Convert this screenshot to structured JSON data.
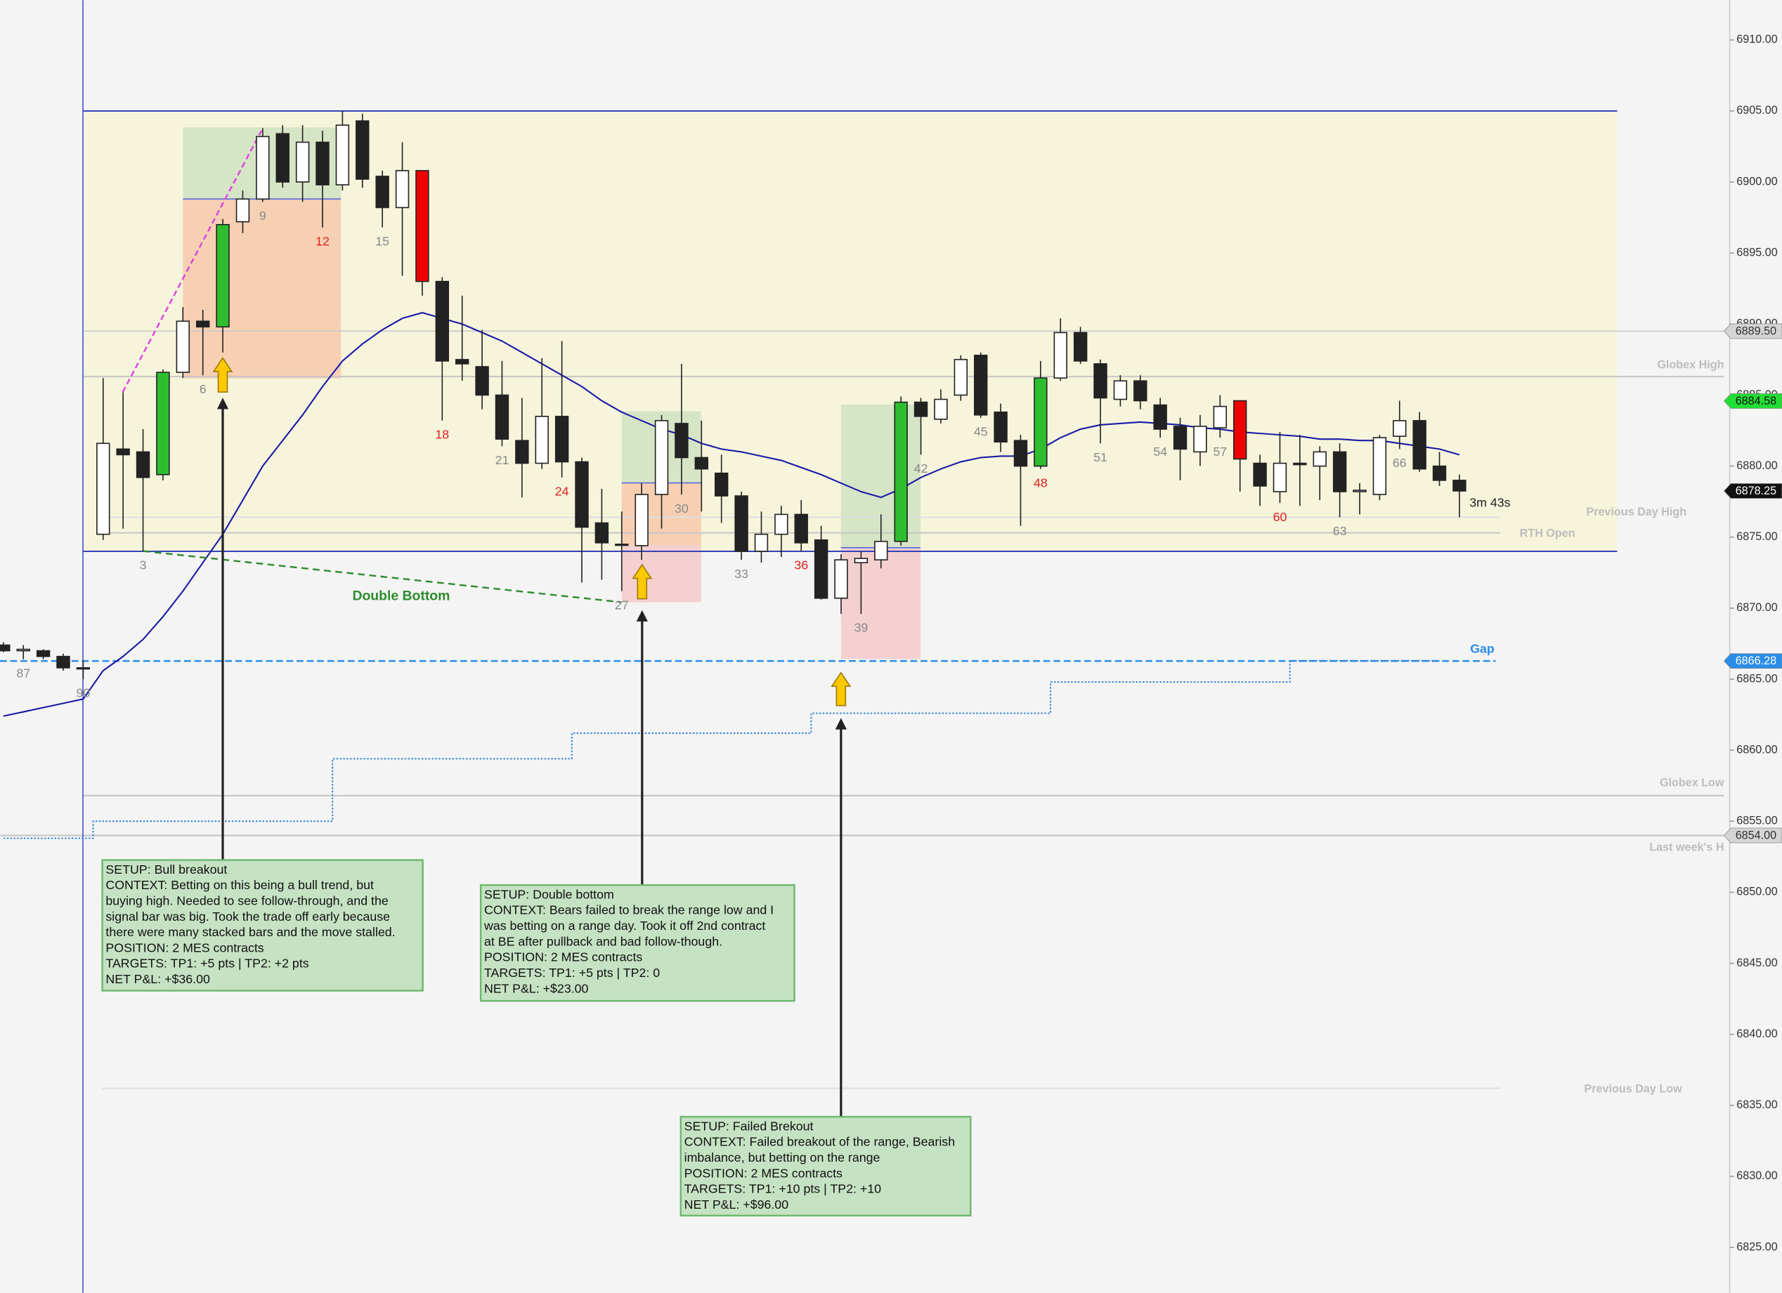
{
  "chart_data": {
    "type": "candlestick",
    "categories": [
      null,
      "87",
      null,
      null,
      "90",
      null,
      null,
      "3",
      null,
      null,
      "6",
      null,
      null,
      "9",
      null,
      null,
      "12",
      null,
      null,
      "15",
      null,
      null,
      "18",
      null,
      null,
      "21",
      null,
      null,
      "24",
      null,
      null,
      "27",
      null,
      null,
      "30",
      null,
      null,
      "33",
      null,
      null,
      "36",
      null,
      null,
      "39",
      null,
      null,
      "42",
      null,
      null,
      "45",
      null,
      null,
      "48",
      null,
      null,
      "51",
      null,
      null,
      "54",
      null,
      null,
      "57",
      null,
      null,
      "60",
      null,
      null,
      "63",
      null,
      null,
      "66",
      null,
      null,
      null
    ],
    "category_colors": [
      null,
      "#888888",
      null,
      null,
      "#888888",
      null,
      null,
      "#888888",
      null,
      null,
      "#888888",
      null,
      null,
      "#888888",
      null,
      null,
      "#e0201f",
      null,
      null,
      "#888888",
      null,
      null,
      "#e0201f",
      null,
      null,
      "#888888",
      null,
      null,
      "#e0201f",
      null,
      null,
      "#888888",
      null,
      null,
      "#888888",
      null,
      null,
      "#888888",
      null,
      null,
      "#e0201f",
      null,
      null,
      "#888888",
      null,
      null,
      "#888888",
      null,
      null,
      "#888888",
      null,
      null,
      "#e0201f",
      null,
      null,
      "#888888",
      null,
      null,
      "#888888",
      null,
      null,
      "#888888",
      null,
      null,
      "#e0201f",
      null,
      null,
      "#888888",
      null,
      null,
      "#888888",
      null,
      null,
      null
    ],
    "open": [
      6867.4,
      6867.0,
      6867.0,
      6866.6,
      6865.8,
      6875.2,
      6881.2,
      6881.0,
      6879.4,
      6886.6,
      6890.2,
      6889.8,
      6897.2,
      6898.8,
      6903.4,
      6900.0,
      6902.8,
      6899.8,
      6904.3,
      6900.4,
      6898.2,
      6900.8,
      6893.0,
      6887.5,
      6887.0,
      6885.0,
      6881.8,
      6880.2,
      6883.5,
      6880.3,
      6876.0,
      6874.5,
      6874.4,
      6878.0,
      6883.0,
      6880.6,
      6879.5,
      6877.9,
      6874.0,
      6875.2,
      6876.6,
      6874.8,
      6870.7,
      6873.2,
      6873.4,
      6874.7,
      6884.5,
      6883.3,
      6885.0,
      6887.8,
      6883.8,
      6881.8,
      6880.0,
      6886.2,
      6889.4,
      6887.2,
      6884.7,
      6886.0,
      6884.3,
      6882.8,
      6881.0,
      6882.7,
      6884.6,
      6880.2,
      6878.2,
      6880.2,
      6880.0,
      6881.0,
      6878.2,
      6878.0,
      6882.1,
      6883.2,
      6880.0,
      6879.0
    ],
    "high": [
      6867.6,
      6867.4,
      6867.1,
      6866.8,
      6866.3,
      6886.2,
      6885.2,
      6882.6,
      6886.8,
      6891.2,
      6891.0,
      6897.4,
      6899.4,
      6903.8,
      6904.0,
      6904.0,
      6903.6,
      6905.0,
      6904.8,
      6900.8,
      6902.8,
      6900.8,
      6893.3,
      6892.0,
      6889.6,
      6887.4,
      6884.8,
      6887.6,
      6888.8,
      6880.6,
      6878.4,
      6876.8,
      6878.8,
      6883.6,
      6887.2,
      6883.2,
      6880.8,
      6878.2,
      6876.8,
      6877.2,
      6877.6,
      6875.8,
      6873.8,
      6874.0,
      6876.6,
      6884.9,
      6884.8,
      6885.4,
      6887.8,
      6888.0,
      6884.4,
      6882.2,
      6887.4,
      6890.4,
      6889.8,
      6887.5,
      6886.4,
      6886.4,
      6884.8,
      6883.4,
      6883.6,
      6885.0,
      6884.6,
      6880.8,
      6882.4,
      6882.2,
      6881.4,
      6881.6,
      6878.8,
      6882.2,
      6884.6,
      6883.8,
      6881.0,
      6879.4
    ],
    "low": [
      6866.9,
      6866.4,
      6866.4,
      6865.6,
      6865.0,
      6874.8,
      6875.6,
      6874.0,
      6879.0,
      6886.2,
      6886.4,
      6888.0,
      6896.4,
      6898.6,
      6899.6,
      6898.6,
      6896.8,
      6899.4,
      6899.6,
      6896.8,
      6893.4,
      6892.0,
      6883.2,
      6886.0,
      6884.0,
      6881.4,
      6877.8,
      6879.8,
      6879.2,
      6871.8,
      6872.0,
      6871.2,
      6873.4,
      6875.6,
      6878.0,
      6876.8,
      6876.0,
      6873.4,
      6873.2,
      6873.6,
      6874.0,
      6870.6,
      6869.6,
      6869.6,
      6872.8,
      6874.4,
      6880.8,
      6883.0,
      6884.6,
      6883.4,
      6881.0,
      6875.8,
      6879.8,
      6886.0,
      6887.2,
      6881.6,
      6884.2,
      6884.0,
      6882.0,
      6879.0,
      6880.0,
      6882.0,
      6878.2,
      6877.2,
      6877.4,
      6877.2,
      6877.6,
      6876.4,
      6876.6,
      6877.6,
      6881.2,
      6879.6,
      6878.6,
      6876.4
    ],
    "close": [
      6867.0,
      6867.1,
      6866.6,
      6865.8,
      6865.8,
      6881.6,
      6880.8,
      6879.2,
      6886.6,
      6890.2,
      6889.8,
      6897.0,
      6898.8,
      6903.2,
      6900.0,
      6902.8,
      6899.8,
      6904.0,
      6900.2,
      6898.2,
      6900.8,
      6893.0,
      6887.4,
      6887.2,
      6885.0,
      6881.9,
      6880.2,
      6883.5,
      6880.3,
      6875.7,
      6874.6,
      6874.5,
      6878.0,
      6883.2,
      6880.6,
      6879.8,
      6877.9,
      6874.0,
      6875.2,
      6876.6,
      6874.6,
      6870.7,
      6873.4,
      6873.5,
      6874.7,
      6884.5,
      6883.5,
      6884.7,
      6887.5,
      6883.6,
      6881.7,
      6880.0,
      6886.2,
      6889.4,
      6887.4,
      6884.8,
      6886.0,
      6884.6,
      6882.6,
      6881.2,
      6882.8,
      6884.2,
      6880.5,
      6878.6,
      6880.2,
      6880.1,
      6881.0,
      6878.2,
      6878.3,
      6882.0,
      6883.2,
      6879.8,
      6879.0,
      6878.25
    ],
    "colors": [
      null,
      null,
      null,
      null,
      null,
      null,
      null,
      null,
      "#2ebd2e",
      null,
      null,
      "#2ebd2e",
      null,
      null,
      null,
      null,
      null,
      null,
      null,
      null,
      null,
      "#ee0000",
      null,
      null,
      null,
      null,
      null,
      null,
      null,
      null,
      null,
      null,
      null,
      null,
      null,
      null,
      null,
      null,
      null,
      null,
      null,
      null,
      null,
      null,
      null,
      "#2ebd2e",
      null,
      null,
      null,
      null,
      null,
      null,
      "#2ebd2e",
      null,
      null,
      null,
      null,
      null,
      null,
      null,
      null,
      null,
      "#ee0000",
      null,
      null,
      null,
      null,
      null,
      null,
      null,
      null,
      null,
      null,
      null
    ],
    "up_color": "#ffffff",
    "down_color": "#222222",
    "series": [
      {
        "color": "#1a1aa8",
        "style": "solid",
        "values": [
          6862.4,
          6862.7,
          6863.0,
          6863.3,
          6863.6,
          6865.6,
          6866.6,
          6867.8,
          6869.4,
          6871.2,
          6873.2,
          6875.2,
          6877.6,
          6880.0,
          6881.8,
          6883.6,
          6885.6,
          6887.4,
          6888.6,
          6889.6,
          6890.4,
          6890.8,
          6890.4,
          6890.0,
          6889.4,
          6888.8,
          6888.0,
          6887.2,
          6886.4,
          6885.6,
          6884.6,
          6883.8,
          6883.2,
          6882.6,
          6882.2,
          6881.6,
          6881.2,
          6881.0,
          6880.7,
          6880.4,
          6879.9,
          6879.4,
          6878.8,
          6878.2,
          6877.8,
          6878.4,
          6879.2,
          6879.8,
          6880.3,
          6880.6,
          6880.7,
          6880.7,
          6881.2,
          6882.0,
          6882.6,
          6882.9,
          6883.0,
          6883.1,
          6883.0,
          6882.9,
          6882.7,
          6882.6,
          6882.4,
          6882.3,
          6882.2,
          6882.1,
          6881.9,
          6881.9,
          6881.8,
          6881.8,
          6881.6,
          6881.4,
          6881.2,
          6880.8
        ]
      },
      {
        "color": "#2a7fd8",
        "style": "step-dotted",
        "values": [
          6853.8,
          6853.8,
          6853.8,
          6853.8,
          6853.8,
          6855.0,
          6855.0,
          6855.0,
          6855.0,
          6855.0,
          6855.0,
          6855.0,
          6855.0,
          6855.0,
          6855.0,
          6855.0,
          6855.0,
          6859.4,
          6859.4,
          6859.4,
          6859.4,
          6859.4,
          6859.4,
          6859.4,
          6859.4,
          6859.4,
          6859.4,
          6859.4,
          6859.4,
          6861.2,
          6861.2,
          6861.2,
          6861.2,
          6861.2,
          6861.2,
          6861.2,
          6861.2,
          6861.2,
          6861.2,
          6861.2,
          6861.2,
          6862.6,
          6862.6,
          6862.6,
          6862.6,
          6862.6,
          6862.6,
          6862.6,
          6862.6,
          6862.6,
          6862.6,
          6862.6,
          6862.6,
          6864.8,
          6864.8,
          6864.8,
          6864.8,
          6864.8,
          6864.8,
          6864.8,
          6864.8,
          6864.8,
          6864.8,
          6864.8,
          6864.8,
          6866.3,
          6866.3,
          6866.3,
          6866.3,
          6866.3,
          6866.3,
          6866.3,
          6866.3,
          null
        ]
      }
    ],
    "ylim": [
      6821.8,
      6912.8
    ],
    "yticks": [
      {
        "value": 6825,
        "label": "6825.00"
      },
      {
        "value": 6830,
        "label": "6830.00"
      },
      {
        "value": 6835,
        "label": "6835.00"
      },
      {
        "value": 6840,
        "label": "6840.00"
      },
      {
        "value": 6845,
        "label": "6845.00"
      },
      {
        "value": 6850,
        "label": "6850.00"
      },
      {
        "value": 6855,
        "label": "6855.00"
      },
      {
        "value": 6860,
        "label": "6860.00"
      },
      {
        "value": 6865,
        "label": "6865.00"
      },
      {
        "value": 6870,
        "label": "6870.00"
      },
      {
        "value": 6875,
        "label": "6875.00"
      },
      {
        "value": 6880,
        "label": "6880.00"
      },
      {
        "value": 6885,
        "label": "6885.00"
      },
      {
        "value": 6890,
        "label": "6890.00"
      },
      {
        "value": 6895,
        "label": "6895.00"
      },
      {
        "value": 6900,
        "label": "6900.00"
      },
      {
        "value": 6905,
        "label": "6905.00"
      },
      {
        "value": 6910,
        "label": "6910.00"
      }
    ],
    "range": {
      "top": 6905.0,
      "bottom": 6874.0,
      "fill": "#f6f5dc",
      "color": "#3344bb"
    },
    "levels": [
      {
        "label": "Globex High",
        "value": 6886.3,
        "color": "#c4c4c4"
      },
      {
        "label": "Previous Day High",
        "value": 6876.4,
        "color": "#dddddd"
      },
      {
        "label": "RTH Open",
        "value": 6875.3,
        "color": "#c4c4c4"
      },
      {
        "label": "Gap",
        "value": 6866.28,
        "color": "#2a8ee8"
      },
      {
        "label": "Globex Low",
        "value": 6856.8,
        "color": "#c4c4c4"
      },
      {
        "label": "Last week's H",
        "value": 6854.0,
        "color": "#c4c4c4"
      },
      {
        "label": "Previous Day Low",
        "value": 6836.2,
        "color": "#dddddd"
      }
    ],
    "price_tags": [
      {
        "value": 6889.5,
        "label": "6889.50",
        "color": "#d4d4d4",
        "text_color": "#333333"
      },
      {
        "value": 6884.58,
        "label": "6884.58",
        "color": "#22dd33",
        "text_color": "#111111"
      },
      {
        "value": 6878.25,
        "label": "6878.25",
        "color": "#111111",
        "text_color": "#ffffff"
      },
      {
        "value": 6866.28,
        "label": "6866.28",
        "color": "#2a8ee8",
        "text_color": "#ffffff"
      },
      {
        "value": 6854.0,
        "label": "6854.00",
        "color": "#d4d4d4",
        "text_color": "#333333"
      }
    ],
    "annotations": {
      "pattern_label": "Double Bottom",
      "countdown": "3m 43s",
      "notes": [
        {
          "lines": [
            "SETUP: Bull breakout",
            "CONTEXT: Betting on this being a bull trend, but",
            "buying high. Needed to see follow-through, and the",
            "signal bar was big. Took the trade off early because",
            "there were many stacked bars and the move stalled.",
            "POSITION: 2 MES contracts",
            "TARGETS: TP1: +5 pts | TP2: +2 pts",
            "NET P&L: +$36.00"
          ]
        },
        {
          "lines": [
            "SETUP: Double bottom",
            "CONTEXT: Bears failed to break the range low and I",
            "was betting on a range day. Took it off 2nd contract",
            "at BE after pullback and bad follow-though.",
            "POSITION: 2 MES contracts",
            "TARGETS: TP1: +5 pts | TP2: 0",
            "NET P&L: +$23.00"
          ]
        },
        {
          "lines": [
            "SETUP: Failed Brekout",
            "CONTEXT: Failed breakout of the range, Bearish",
            "imbalance, but betting on the range",
            "POSITION: 2 MES contracts",
            "TARGETS: TP1: +10 pts | TP2: +10",
            "NET P&L: +$96.00"
          ]
        }
      ]
    }
  }
}
